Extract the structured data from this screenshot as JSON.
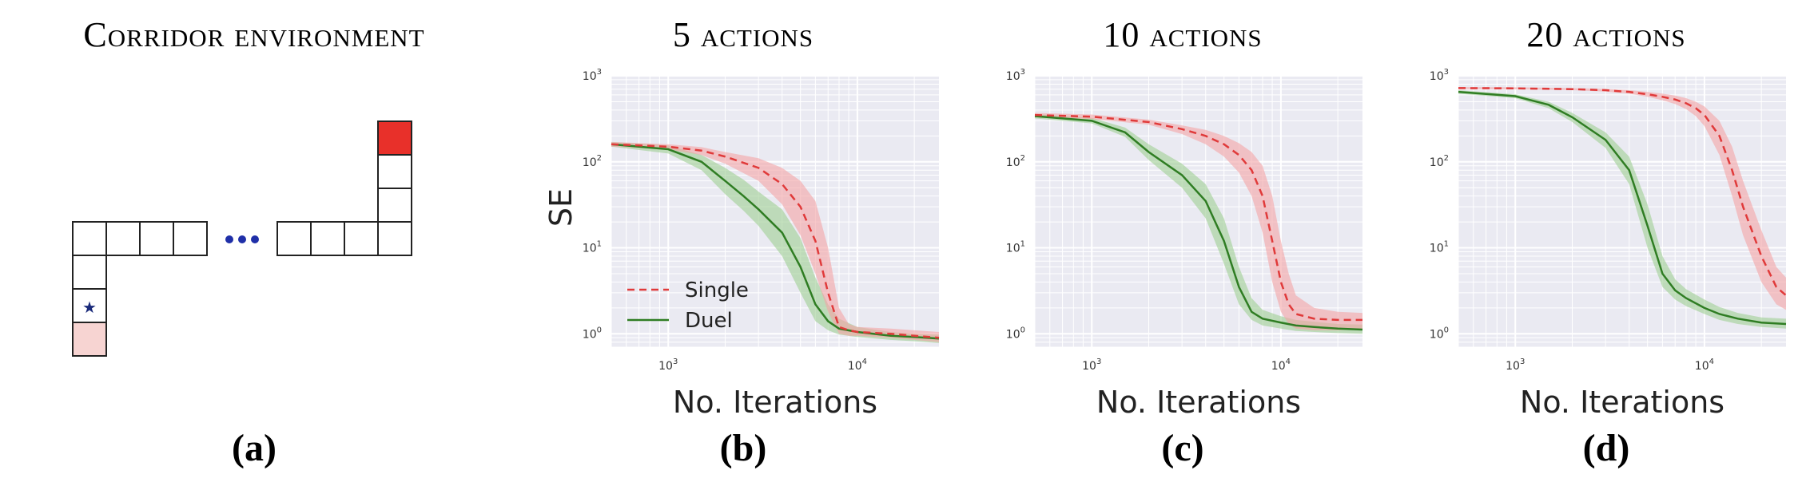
{
  "colors": {
    "single": "#e03a3a",
    "single_band": "#f3a3a5",
    "duel": "#2f7d23",
    "duel_band": "#9fcf92",
    "plot_bg": "#eaeaf2",
    "grid": "#ffffff",
    "goal_cell": "#e8302a",
    "start_cell": "#f7d4d2",
    "dots": "#1f2fa8"
  },
  "panel_a": {
    "title": "Corridor environment",
    "label": "(a)",
    "start_marker": "★"
  },
  "chart_data": [
    {
      "type": "line",
      "title": "5 actions",
      "label": "(b)",
      "xlabel": "No. Iterations",
      "ylabel": "SE",
      "xscale": "log",
      "yscale": "log",
      "xlim": [
        500,
        27000
      ],
      "ylim": [
        0.7,
        1000
      ],
      "xticks": [
        {
          "value": 1000,
          "base": "10",
          "exp": "3"
        },
        {
          "value": 10000,
          "base": "10",
          "exp": "4"
        }
      ],
      "yticks": [
        {
          "value": 1,
          "base": "10",
          "exp": "0"
        },
        {
          "value": 10,
          "base": "10",
          "exp": "1"
        },
        {
          "value": 100,
          "base": "10",
          "exp": "2"
        },
        {
          "value": 1000,
          "base": "10",
          "exp": "3"
        }
      ],
      "grid": true,
      "legend": {
        "placement": "lower-left",
        "entries": [
          "Single",
          "Duel"
        ]
      },
      "series": [
        {
          "name": "Single",
          "style": "dashed",
          "x": [
            500,
            1000,
            1500,
            2000,
            3000,
            4000,
            5000,
            6000,
            7000,
            8000,
            9000,
            10000,
            15000,
            20000,
            27000
          ],
          "y": [
            160,
            150,
            135,
            115,
            85,
            55,
            30,
            12,
            3,
            1.2,
            1.1,
            1.05,
            1.0,
            0.95,
            0.9
          ],
          "lower": [
            150,
            140,
            120,
            95,
            60,
            32,
            14,
            5,
            1.8,
            1.0,
            0.95,
            0.95,
            0.9,
            0.85,
            0.8
          ],
          "upper": [
            170,
            160,
            148,
            130,
            110,
            85,
            60,
            35,
            10,
            2.0,
            1.3,
            1.2,
            1.15,
            1.1,
            1.05
          ]
        },
        {
          "name": "Duel",
          "style": "solid",
          "x": [
            500,
            1000,
            1500,
            2000,
            2500,
            3000,
            4000,
            5000,
            6000,
            7000,
            8000,
            10000,
            15000,
            20000,
            27000
          ],
          "y": [
            160,
            140,
            100,
            60,
            40,
            28,
            15,
            6,
            2.2,
            1.4,
            1.15,
            1.05,
            0.95,
            0.92,
            0.88
          ],
          "lower": [
            150,
            125,
            80,
            42,
            27,
            18,
            8,
            3,
            1.4,
            1.1,
            0.98,
            0.92,
            0.85,
            0.82,
            0.78
          ],
          "upper": [
            170,
            155,
            120,
            85,
            62,
            45,
            28,
            13,
            4.5,
            2.2,
            1.5,
            1.2,
            1.05,
            1.0,
            0.98
          ]
        }
      ]
    },
    {
      "type": "line",
      "title": "10 actions",
      "label": "(c)",
      "xlabel": "No. Iterations",
      "ylabel": "",
      "xscale": "log",
      "yscale": "log",
      "xlim": [
        500,
        27000
      ],
      "ylim": [
        0.7,
        1000
      ],
      "xticks": [
        {
          "value": 1000,
          "base": "10",
          "exp": "3"
        },
        {
          "value": 10000,
          "base": "10",
          "exp": "4"
        }
      ],
      "yticks": [
        {
          "value": 1,
          "base": "10",
          "exp": "0"
        },
        {
          "value": 10,
          "base": "10",
          "exp": "1"
        },
        {
          "value": 100,
          "base": "10",
          "exp": "2"
        },
        {
          "value": 1000,
          "base": "10",
          "exp": "3"
        }
      ],
      "grid": true,
      "series": [
        {
          "name": "Single",
          "style": "dashed",
          "x": [
            500,
            1000,
            2000,
            3000,
            4000,
            5000,
            6000,
            7000,
            8000,
            9000,
            10000,
            11000,
            12000,
            15000,
            20000,
            27000
          ],
          "y": [
            350,
            335,
            290,
            240,
            200,
            160,
            120,
            80,
            40,
            12,
            4,
            2.2,
            1.7,
            1.5,
            1.45,
            1.45
          ],
          "lower": [
            330,
            315,
            270,
            210,
            160,
            115,
            75,
            40,
            15,
            4,
            1.8,
            1.3,
            1.15,
            1.1,
            1.1,
            1.15
          ],
          "upper": [
            370,
            355,
            310,
            265,
            235,
            200,
            165,
            130,
            90,
            40,
            12,
            5,
            2.8,
            2.0,
            1.8,
            1.75
          ]
        },
        {
          "name": "Duel",
          "style": "solid",
          "x": [
            500,
            1000,
            1500,
            2000,
            3000,
            4000,
            5000,
            6000,
            7000,
            8000,
            10000,
            12000,
            15000,
            20000,
            27000
          ],
          "y": [
            340,
            300,
            220,
            130,
            70,
            35,
            12,
            3.5,
            1.8,
            1.5,
            1.35,
            1.25,
            1.2,
            1.15,
            1.12
          ],
          "lower": [
            320,
            280,
            195,
            105,
            50,
            22,
            6.5,
            2.2,
            1.45,
            1.25,
            1.15,
            1.08,
            1.05,
            1.02,
            1.0
          ],
          "upper": [
            360,
            325,
            250,
            160,
            95,
            55,
            22,
            6,
            2.6,
            1.9,
            1.6,
            1.45,
            1.38,
            1.3,
            1.28
          ]
        }
      ]
    },
    {
      "type": "line",
      "title": "20 actions",
      "label": "(d)",
      "xlabel": "No. Iterations",
      "ylabel": "",
      "xscale": "log",
      "yscale": "log",
      "xlim": [
        500,
        27000
      ],
      "ylim": [
        0.7,
        1000
      ],
      "xticks": [
        {
          "value": 1000,
          "base": "10",
          "exp": "3"
        },
        {
          "value": 10000,
          "base": "10",
          "exp": "4"
        }
      ],
      "yticks": [
        {
          "value": 1,
          "base": "10",
          "exp": "0"
        },
        {
          "value": 10,
          "base": "10",
          "exp": "1"
        },
        {
          "value": 100,
          "base": "10",
          "exp": "2"
        },
        {
          "value": 1000,
          "base": "10",
          "exp": "3"
        }
      ],
      "grid": true,
      "series": [
        {
          "name": "Single",
          "style": "dashed",
          "x": [
            500,
            1000,
            2000,
            3000,
            4000,
            5000,
            6000,
            7000,
            8000,
            9000,
            10000,
            12000,
            14000,
            16000,
            20000,
            24000,
            27000
          ],
          "y": [
            720,
            715,
            700,
            680,
            650,
            610,
            570,
            530,
            480,
            420,
            350,
            200,
            80,
            30,
            8,
            3.5,
            2.8
          ],
          "lower": [
            700,
            695,
            680,
            655,
            620,
            570,
            520,
            470,
            410,
            340,
            260,
            120,
            40,
            14,
            4,
            2.2,
            1.9
          ],
          "upper": [
            740,
            735,
            720,
            705,
            680,
            650,
            620,
            590,
            550,
            500,
            440,
            300,
            150,
            60,
            16,
            6,
            4.5
          ]
        },
        {
          "name": "Duel",
          "style": "solid",
          "x": [
            500,
            1000,
            1500,
            2000,
            3000,
            4000,
            5000,
            6000,
            7000,
            8000,
            10000,
            12000,
            15000,
            20000,
            27000
          ],
          "y": [
            650,
            580,
            460,
            330,
            180,
            80,
            18,
            5,
            3.2,
            2.6,
            2.0,
            1.7,
            1.5,
            1.35,
            1.3
          ],
          "lower": [
            620,
            550,
            420,
            290,
            145,
            55,
            10,
            3.5,
            2.5,
            2.1,
            1.7,
            1.45,
            1.3,
            1.2,
            1.15
          ],
          "upper": [
            680,
            610,
            500,
            370,
            220,
            115,
            32,
            8,
            4.3,
            3.3,
            2.5,
            2.05,
            1.75,
            1.55,
            1.5
          ]
        }
      ]
    }
  ]
}
